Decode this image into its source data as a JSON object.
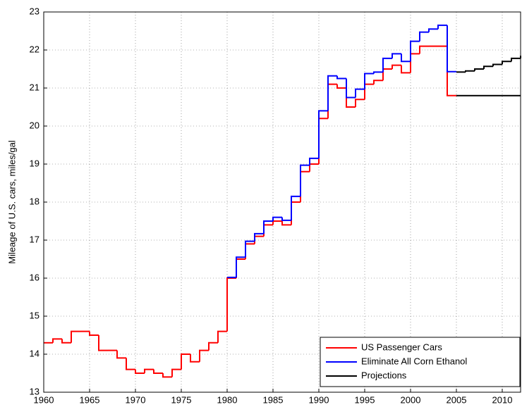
{
  "chart_data": {
    "type": "stairs",
    "y_label": "Mileage of U.S. cars, miles/gal",
    "xlim": [
      1960,
      2012
    ],
    "xticks": [
      1960,
      1965,
      1970,
      1975,
      1980,
      1985,
      1990,
      1995,
      2000,
      2005,
      2010
    ],
    "ylim": [
      13,
      23
    ],
    "yticks": [
      13,
      14,
      15,
      16,
      17,
      18,
      19,
      20,
      21,
      22,
      23
    ],
    "grid": true,
    "legend_position": "lower right",
    "series": [
      {
        "name": "US Passenger Cars",
        "color": "#ff0000",
        "x": [
          1960,
          1961,
          1962,
          1963,
          1964,
          1965,
          1966,
          1967,
          1968,
          1969,
          1970,
          1971,
          1972,
          1973,
          1974,
          1975,
          1976,
          1977,
          1978,
          1979,
          1980,
          1981,
          1982,
          1983,
          1984,
          1985,
          1986,
          1987,
          1988,
          1989,
          1990,
          1991,
          1992,
          1993,
          1994,
          1995,
          1996,
          1997,
          1998,
          1999,
          2000,
          2001,
          2002,
          2003,
          2004,
          2005
        ],
        "values": [
          14.3,
          14.4,
          14.3,
          14.6,
          14.6,
          14.5,
          14.1,
          14.1,
          13.9,
          13.6,
          13.5,
          13.6,
          13.5,
          13.4,
          13.6,
          14.0,
          13.8,
          14.1,
          14.3,
          14.6,
          16.0,
          16.5,
          16.9,
          17.1,
          17.4,
          17.5,
          17.4,
          18.0,
          18.8,
          19.0,
          20.2,
          21.1,
          21.0,
          20.5,
          20.7,
          21.1,
          21.2,
          21.5,
          21.6,
          21.4,
          21.9,
          22.1,
          22.1,
          22.1,
          20.8,
          20.8
        ]
      },
      {
        "name": "Eliminate All Corn Ethanol",
        "color": "#0000ff",
        "x": [
          1980,
          1981,
          1982,
          1983,
          1984,
          1985,
          1986,
          1987,
          1988,
          1989,
          1990,
          1991,
          1992,
          1993,
          1994,
          1995,
          1996,
          1997,
          1998,
          1999,
          2000,
          2001,
          2002,
          2003,
          2004,
          2005
        ],
        "values": [
          16.02,
          16.55,
          16.97,
          17.17,
          17.5,
          17.6,
          17.52,
          18.15,
          18.97,
          19.15,
          20.4,
          21.32,
          21.25,
          20.75,
          20.97,
          21.38,
          21.42,
          21.78,
          21.9,
          21.7,
          22.23,
          22.47,
          22.55,
          22.65,
          21.43,
          21.43
        ]
      },
      {
        "name": "Projections",
        "color": "#000000",
        "x": [
          2005,
          2006,
          2007,
          2008,
          2009,
          2010,
          2011,
          2012
        ],
        "values": [
          21.42,
          21.45,
          21.5,
          21.57,
          21.62,
          21.7,
          21.78,
          21.85
        ]
      },
      {
        "color": "#000000",
        "x": [
          2005,
          2006,
          2007,
          2008,
          2009,
          2010,
          2011,
          2012
        ],
        "values": [
          20.8,
          20.8,
          20.8,
          20.8,
          20.8,
          20.8,
          20.8,
          20.8
        ]
      }
    ]
  }
}
